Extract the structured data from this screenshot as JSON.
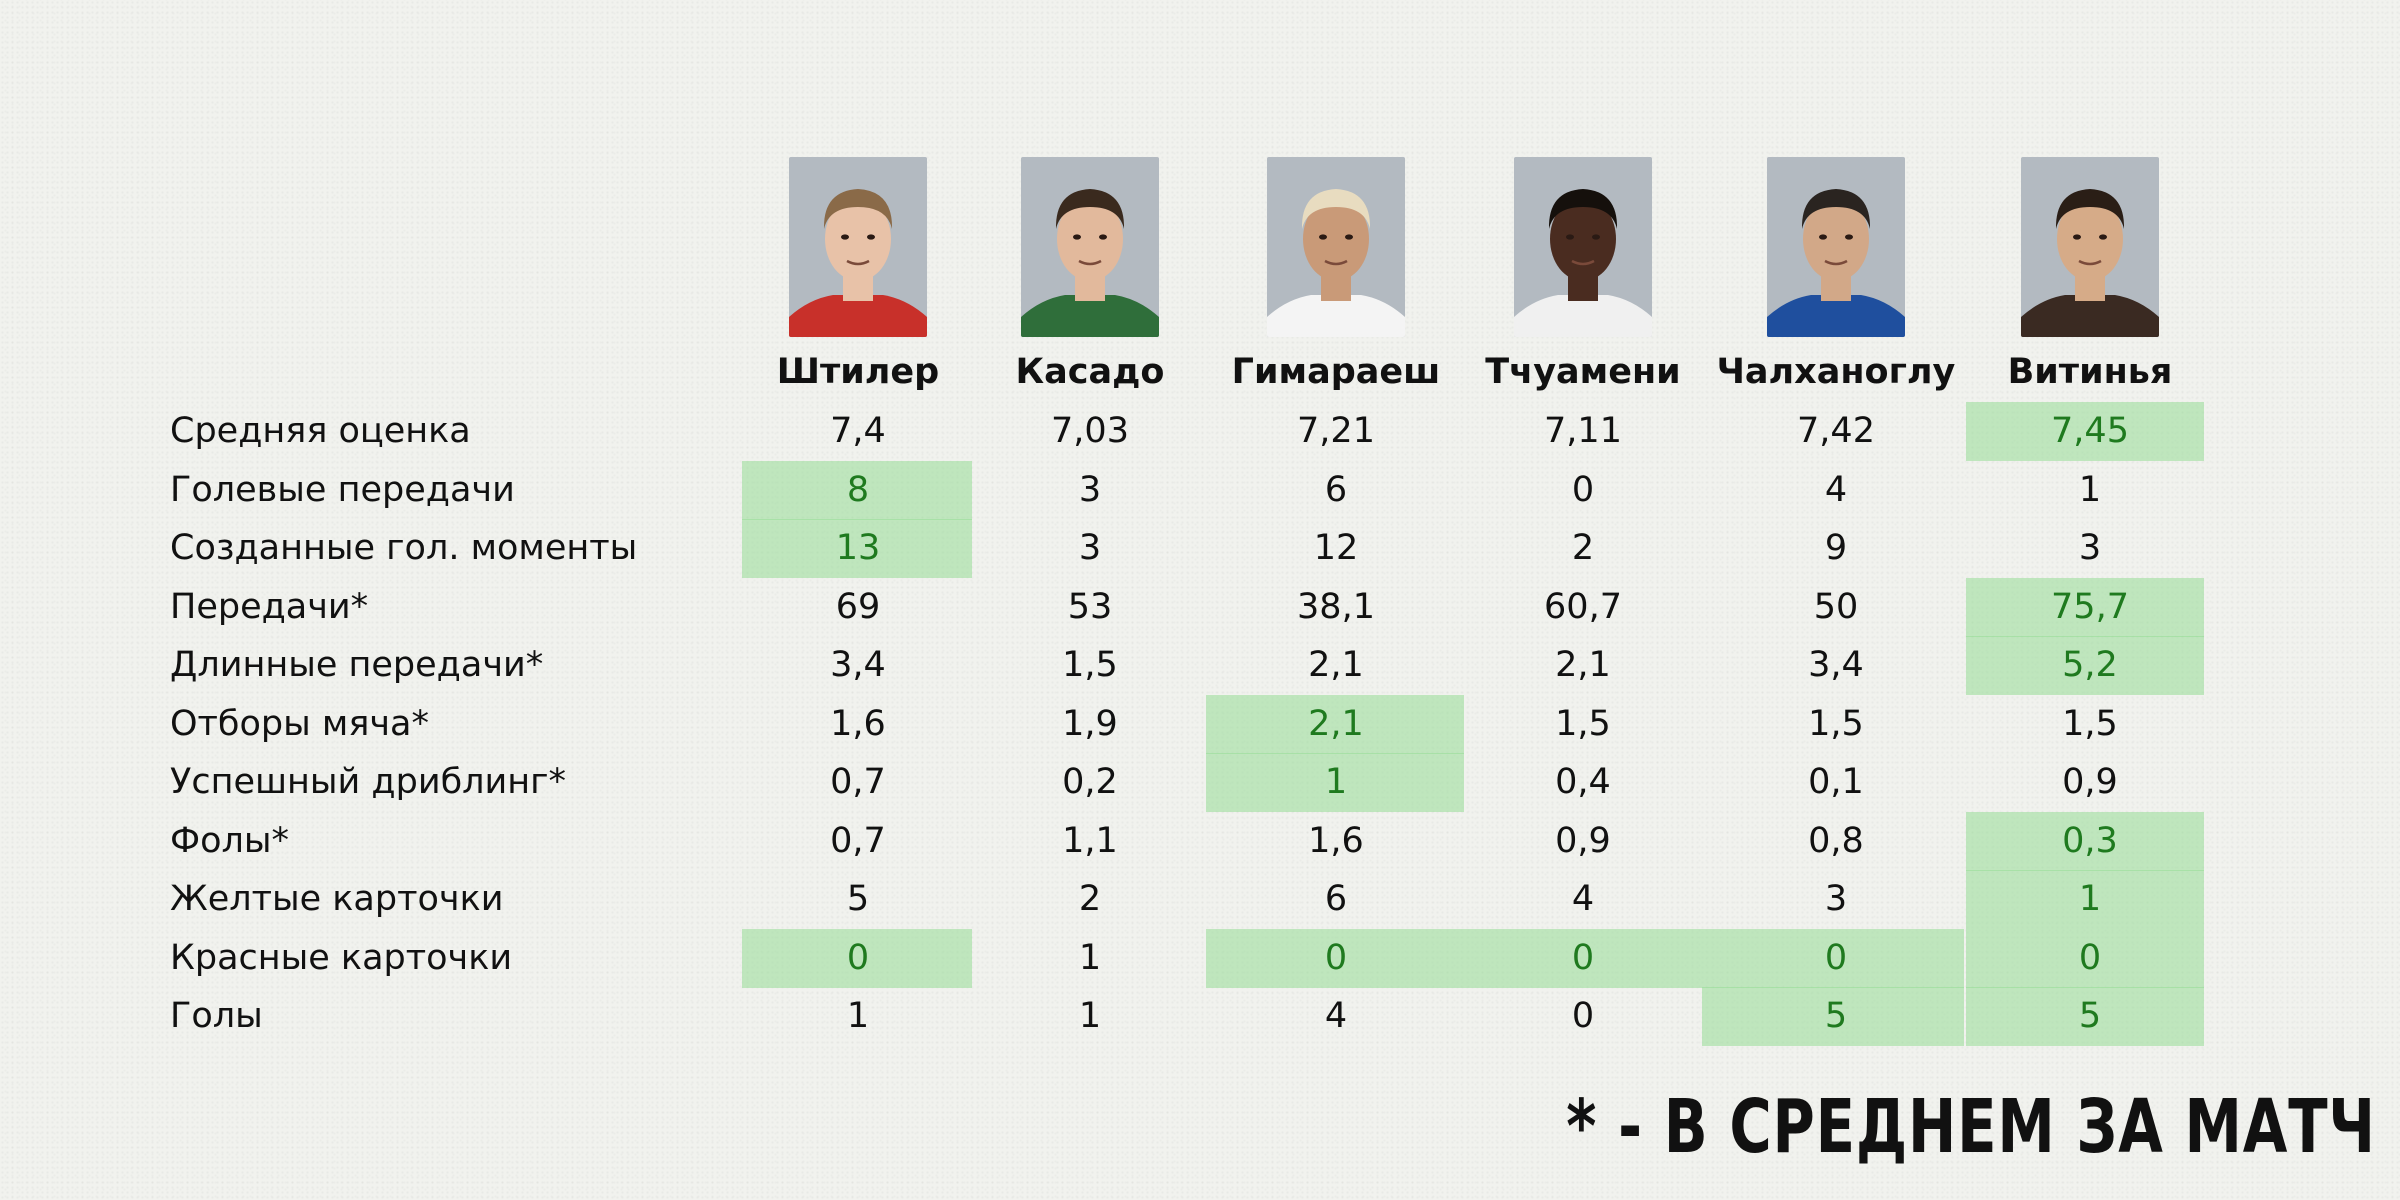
{
  "players": [
    {
      "name": "Штилер",
      "photo": "player-photo",
      "skin": "#e8c2a8",
      "hair": "#8a6a48",
      "shirt": "#c8302a"
    },
    {
      "name": "Касадо",
      "photo": "player-photo",
      "skin": "#e2b99c",
      "hair": "#3a2a1e",
      "shirt": "#2f6e3a"
    },
    {
      "name": "Гимараеш",
      "photo": "player-photo",
      "skin": "#c99a78",
      "hair": "#e8dcc0",
      "shirt": "#f4f4f4"
    },
    {
      "name": "Тчуамени",
      "photo": "player-photo",
      "skin": "#4a2c20",
      "hair": "#15100c",
      "shirt": "#f0f0f0"
    },
    {
      "name": "Чалханоглу",
      "photo": "player-photo",
      "skin": "#d2a888",
      "hair": "#2a2420",
      "shirt": "#1f4f9e"
    },
    {
      "name": "Витинья",
      "photo": "player-photo",
      "skin": "#d6ab88",
      "hair": "#2a1e16",
      "shirt": "#3a2a22"
    }
  ],
  "stats": [
    {
      "label": "Средняя оценка",
      "values": [
        "7,4",
        "7,03",
        "7,21",
        "7,11",
        "7,42",
        "7,45"
      ],
      "best": [
        5
      ]
    },
    {
      "label": "Голевые передачи",
      "values": [
        "8",
        "3",
        "6",
        "0",
        "4",
        "1"
      ],
      "best": [
        0
      ]
    },
    {
      "label": "Созданные гол. моменты",
      "values": [
        "13",
        "3",
        "12",
        "2",
        "9",
        "3"
      ],
      "best": [
        0
      ]
    },
    {
      "label": "Передачи*",
      "values": [
        "69",
        "53",
        "38,1",
        "60,7",
        "50",
        "75,7"
      ],
      "best": [
        5
      ]
    },
    {
      "label": "Длинные передачи*",
      "values": [
        "3,4",
        "1,5",
        "2,1",
        "2,1",
        "3,4",
        "5,2"
      ],
      "best": [
        5
      ]
    },
    {
      "label": "Отборы мяча*",
      "values": [
        "1,6",
        "1,9",
        "2,1",
        "1,5",
        "1,5",
        "1,5"
      ],
      "best": [
        2
      ]
    },
    {
      "label": "Успешный дриблинг*",
      "values": [
        "0,7",
        "0,2",
        "1",
        "0,4",
        "0,1",
        "0,9"
      ],
      "best": [
        2
      ]
    },
    {
      "label": "Фолы*",
      "values": [
        "0,7",
        "1,1",
        "1,6",
        "0,9",
        "0,8",
        "0,3"
      ],
      "best": [
        5
      ]
    },
    {
      "label": "Желтые карточки",
      "values": [
        "5",
        "2",
        "6",
        "4",
        "3",
        "1"
      ],
      "best": [
        5
      ]
    },
    {
      "label": "Красные карточки",
      "values": [
        "0",
        "1",
        "0",
        "0",
        "0",
        "0"
      ],
      "best": [
        0,
        2,
        3,
        4,
        5
      ]
    },
    {
      "label": "Голы",
      "values": [
        "1",
        "1",
        "4",
        "0",
        "5",
        "5"
      ],
      "best": [
        4,
        5
      ]
    }
  ],
  "footnote": "* - В СРЕДНЕМ ЗА МАТЧ",
  "colors": {
    "highlight": "#a9dfa6",
    "best_text": "#1f7a1f",
    "background": "#f1f2ee"
  }
}
